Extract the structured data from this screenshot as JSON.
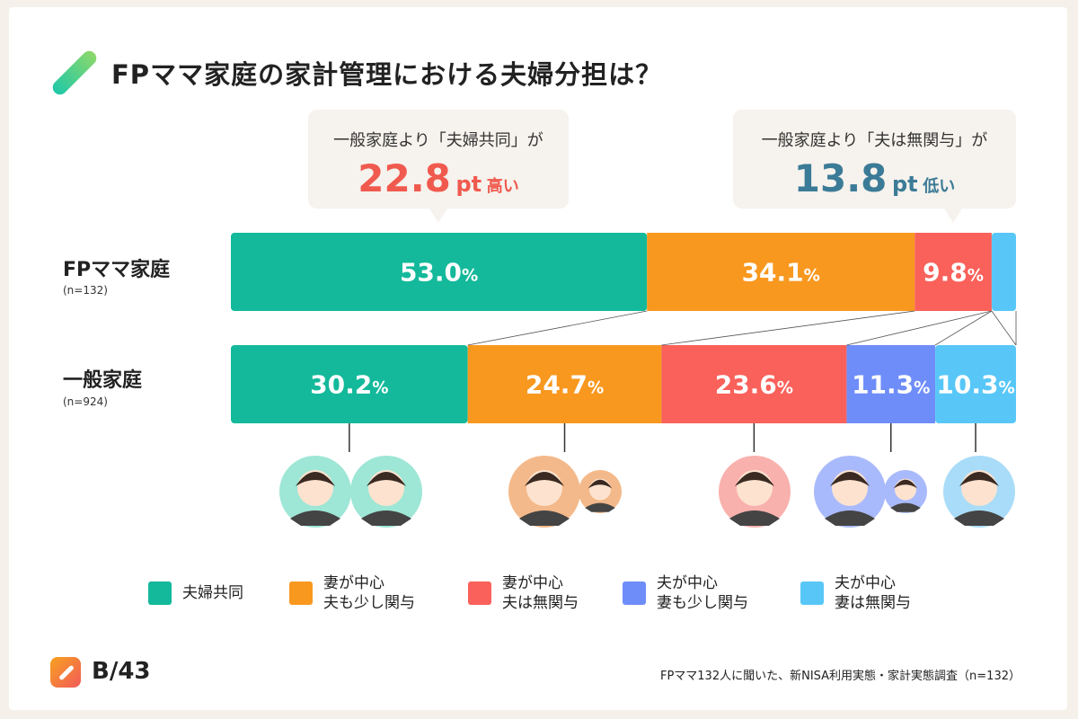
{
  "title": "FPママ家庭の家計管理における夫婦分担は？",
  "callouts": [
    {
      "line1": "一般家庭より「夫婦共同」が",
      "value": "22.8",
      "unit": "pt",
      "suffix": "高い",
      "color": "#f05a4e"
    },
    {
      "line1": "一般家庭より「夫は無関与」が",
      "value": "13.8",
      "unit": "pt",
      "suffix": "低い",
      "color": "#3b7b97"
    }
  ],
  "chart_data": {
    "type": "bar",
    "orientation": "horizontal",
    "stacked": true,
    "normalized": true,
    "categories": [
      "FPママ家庭",
      "一般家庭"
    ],
    "category_notes": [
      "(n=132)",
      "(n=924)"
    ],
    "series": [
      {
        "name": "夫婦共同",
        "color": "#13b99a",
        "values": [
          53.0,
          30.2
        ]
      },
      {
        "name": "妻が中心 夫も少し関与",
        "color": "#f8981f",
        "values": [
          34.1,
          24.7
        ]
      },
      {
        "name": "妻が中心 夫は無関与",
        "color": "#f9615a",
        "values": [
          9.8,
          23.6
        ]
      },
      {
        "name": "夫が中心 妻も少し関与",
        "color": "#6f8df8",
        "values": [
          0,
          11.3
        ]
      },
      {
        "name": "夫が中心 妻は無関与",
        "color": "#58c7f8",
        "values": [
          3.1,
          10.3
        ]
      }
    ],
    "labels": [
      [
        "53.0",
        "34.1",
        "9.8",
        "",
        ""
      ],
      [
        "30.2",
        "24.7",
        "23.6",
        "11.3",
        "10.3"
      ]
    ],
    "label_unit": "%",
    "legend": [
      [
        "夫婦共同",
        ""
      ],
      [
        "妻が中心",
        "夫も少し関与"
      ],
      [
        "妻が中心",
        "夫は無関与"
      ],
      [
        "夫が中心",
        "妻も少し関与"
      ],
      [
        "夫が中心",
        "妻は無関与"
      ]
    ],
    "legend_position": "bottom"
  },
  "footer": {
    "brand": "B/43",
    "source": "FPママ132人に聞いた、新NISA利用実態・家計実態調査（n=132）"
  }
}
